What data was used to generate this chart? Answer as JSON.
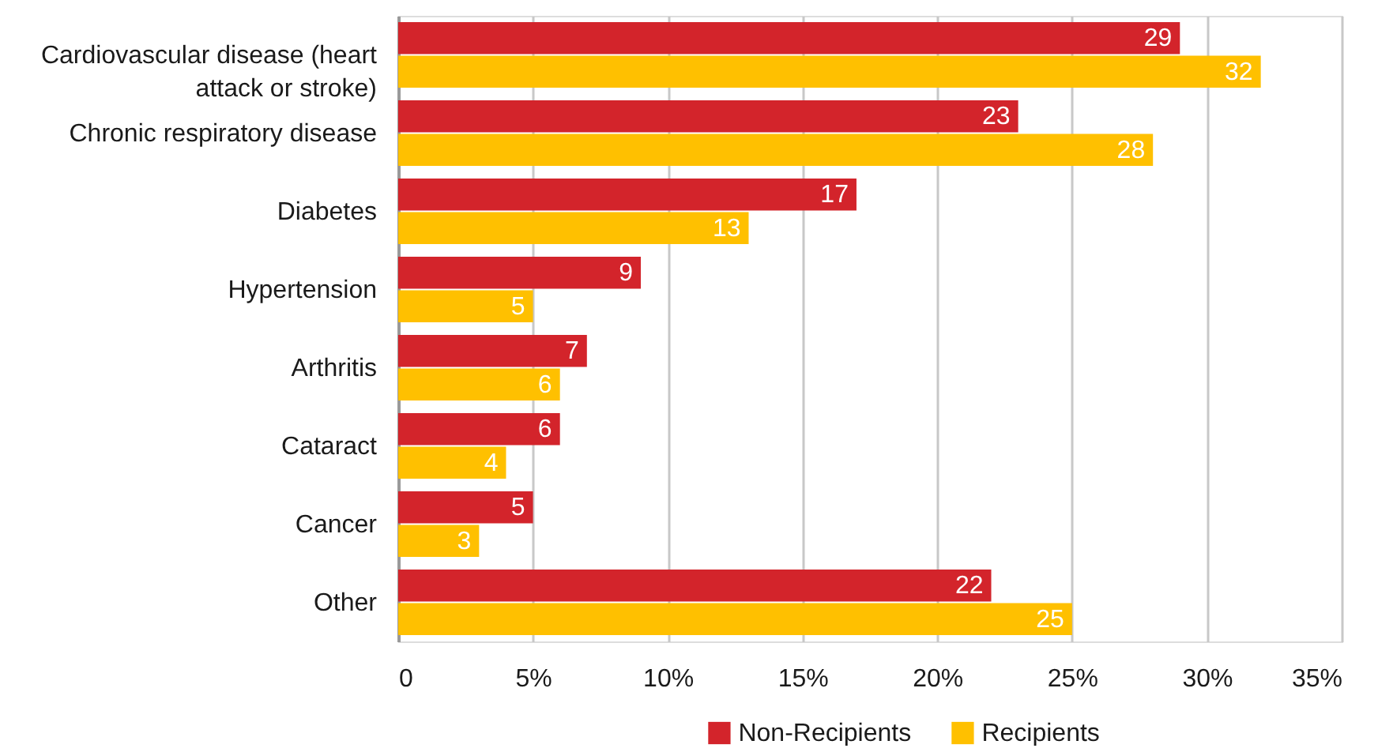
{
  "chart_data": {
    "type": "bar",
    "orientation": "horizontal",
    "categories": [
      "Cardiovascular disease (heart attack or stroke)",
      "Chronic respiratory disease",
      "Diabetes",
      "Hypertension",
      "Arthritis",
      "Cataract",
      "Cancer",
      "Other"
    ],
    "series": [
      {
        "name": "Non-Recipients",
        "color": "#d3242b",
        "values": [
          29,
          23,
          17,
          9,
          7,
          6,
          5,
          22
        ]
      },
      {
        "name": "Recipients",
        "color": "#ffc000",
        "values": [
          32,
          28,
          13,
          5,
          6,
          4,
          3,
          25
        ]
      }
    ],
    "xlim": [
      0,
      35
    ],
    "xticks": [
      0,
      {
        "value": 5,
        "label": "5%"
      },
      {
        "value": 10,
        "label": "10%"
      },
      {
        "value": 15,
        "label": "15%"
      },
      {
        "value": 20,
        "label": "20%"
      },
      {
        "value": 25,
        "label": "25%"
      },
      {
        "value": 30,
        "label": "30%"
      },
      {
        "value": 35,
        "label": "35%"
      }
    ],
    "grid": "x",
    "legend": "bottom",
    "data_labels": true
  }
}
